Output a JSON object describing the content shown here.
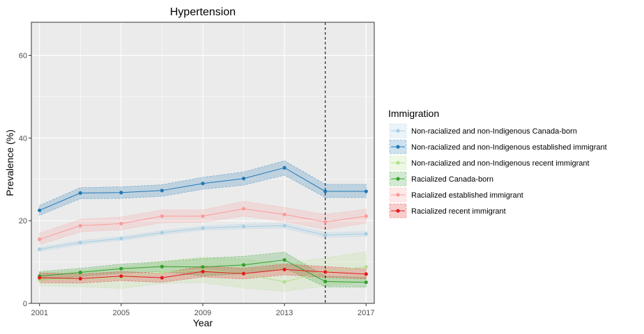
{
  "chart_data": {
    "type": "line",
    "title": "Hypertension",
    "xlabel": "Year",
    "ylabel": "Prevalence (%)",
    "xlim": [
      2000.6,
      2017.4
    ],
    "ylim": [
      0,
      68
    ],
    "x_ticks": [
      2001,
      2005,
      2009,
      2013,
      2017
    ],
    "y_ticks": [
      0,
      20,
      40,
      60
    ],
    "grid": true,
    "vline": 2015,
    "legend": {
      "title": "Immigration",
      "position": "right"
    },
    "x": [
      2001,
      2003,
      2005,
      2007,
      2009,
      2011,
      2013,
      2015,
      2017
    ],
    "series": [
      {
        "name": "Non-racialized and non-Indigenous Canada-born",
        "color": "#a6cee3",
        "values": [
          13.1,
          14.7,
          15.7,
          17.1,
          18.2,
          18.6,
          18.8,
          16.5,
          16.8
        ],
        "lower": [
          12.6,
          14.2,
          15.2,
          16.6,
          17.7,
          18.0,
          18.2,
          15.9,
          16.2
        ],
        "upper": [
          13.6,
          15.2,
          16.2,
          17.6,
          18.7,
          19.2,
          19.4,
          17.1,
          17.4
        ]
      },
      {
        "name": "Non-racialized and non-Indigenous established immigrant",
        "color": "#1f78b4",
        "values": [
          22.5,
          26.7,
          26.8,
          27.3,
          29.0,
          30.2,
          32.8,
          27.1,
          27.1
        ],
        "lower": [
          21.3,
          25.3,
          25.4,
          25.9,
          27.6,
          28.6,
          31.0,
          25.6,
          25.6
        ],
        "upper": [
          23.7,
          28.0,
          28.2,
          28.7,
          30.5,
          31.8,
          34.5,
          28.8,
          28.8
        ]
      },
      {
        "name": "Non-racialized and non-Indigenous recent immigrant",
        "color": "#b2df8a",
        "values": [
          5.7,
          6.0,
          6.2,
          7.5,
          8.1,
          7.2,
          5.2,
          7.8,
          8.8
        ],
        "lower": [
          4.2,
          4.0,
          3.6,
          4.8,
          5.0,
          3.7,
          2.9,
          4.2,
          5.2
        ],
        "upper": [
          7.3,
          8.0,
          8.8,
          10.2,
          11.2,
          10.7,
          9.6,
          11.0,
          12.5
        ]
      },
      {
        "name": "Racialized Canada-born",
        "color": "#33a02c",
        "values": [
          6.6,
          7.5,
          8.4,
          8.9,
          8.8,
          9.3,
          10.5,
          5.3,
          5.1
        ],
        "lower": [
          5.5,
          6.5,
          7.3,
          7.7,
          6.6,
          7.2,
          8.5,
          4.0,
          3.9
        ],
        "upper": [
          7.7,
          8.5,
          9.5,
          10.1,
          10.9,
          11.4,
          12.4,
          6.6,
          6.3
        ]
      },
      {
        "name": "Racialized established immigrant",
        "color": "#fb9a99",
        "values": [
          15.5,
          18.8,
          19.3,
          21.1,
          21.1,
          22.9,
          21.5,
          19.7,
          21.1
        ],
        "lower": [
          14.2,
          17.3,
          17.8,
          19.5,
          19.6,
          21.1,
          19.8,
          17.9,
          19.4
        ],
        "upper": [
          17.0,
          20.3,
          20.9,
          22.6,
          22.6,
          24.7,
          23.2,
          21.5,
          22.8
        ]
      },
      {
        "name": "Racialized recent immigrant",
        "color": "#e31a1c",
        "values": [
          6.2,
          6.0,
          6.6,
          6.2,
          7.7,
          7.2,
          8.2,
          7.6,
          7.1
        ],
        "lower": [
          5.0,
          4.9,
          5.5,
          5.1,
          6.4,
          5.9,
          6.9,
          6.3,
          5.9
        ],
        "upper": [
          7.4,
          7.1,
          7.7,
          7.3,
          9.0,
          8.5,
          9.5,
          8.9,
          8.3
        ]
      }
    ]
  }
}
